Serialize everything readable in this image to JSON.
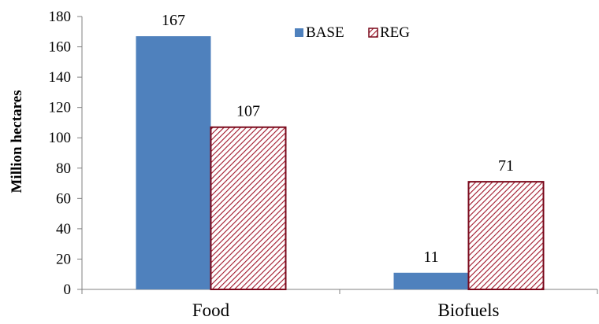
{
  "chart_data": {
    "type": "bar",
    "categories": [
      "Food",
      "Biofuels"
    ],
    "series": [
      {
        "name": "BASE",
        "values": [
          167,
          11
        ]
      },
      {
        "name": "REG",
        "values": [
          107,
          71
        ]
      }
    ],
    "xlabel": "",
    "ylabel": "Million hectares",
    "ylim": [
      0,
      180
    ],
    "yticks": [
      0,
      20,
      40,
      60,
      80,
      100,
      120,
      140,
      160,
      180
    ],
    "grid": false,
    "legend": "top-center",
    "colors": {
      "BASE": "#4f81bd",
      "REG_hatch": "#a0162a",
      "REG_border": "#7a0a1c"
    }
  }
}
